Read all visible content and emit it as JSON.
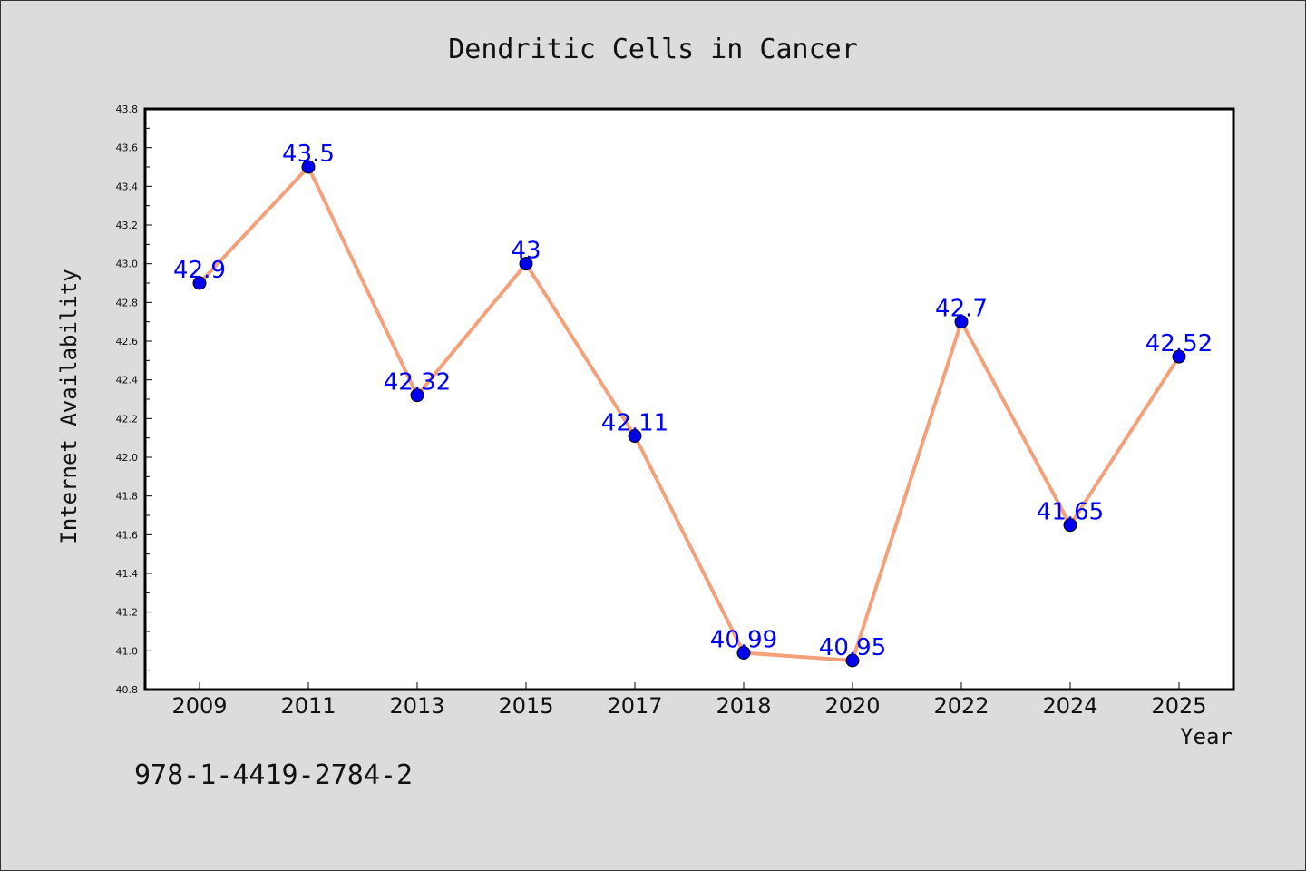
{
  "chart_data": {
    "type": "line",
    "title": "Dendritic Cells in Cancer",
    "xlabel": "Year",
    "ylabel": "Internet Availability",
    "categories": [
      "2009",
      "2011",
      "2013",
      "2015",
      "2017",
      "2018",
      "2020",
      "2022",
      "2024",
      "2025"
    ],
    "series": [
      {
        "values": [
          42.9,
          43.5,
          42.32,
          43.0,
          42.11,
          40.99,
          40.95,
          42.7,
          41.65,
          42.52
        ]
      }
    ],
    "data_labels": [
      "42.9",
      "43.5",
      "42.32",
      "43",
      "42.11",
      "40.99",
      "40.95",
      "42.7",
      "41.65",
      "42.52"
    ],
    "ylim": [
      40.8,
      43.8
    ],
    "yticks": [
      "40.8",
      "41.0",
      "41.2",
      "41.4",
      "41.6",
      "41.8",
      "42.0",
      "42.2",
      "42.4",
      "42.6",
      "42.8",
      "43.0",
      "43.2",
      "43.4",
      "43.6",
      "43.8"
    ],
    "grid": false,
    "line_color": "#f4a07a",
    "marker_color": "#0000ee",
    "label_color": "#0000ff"
  },
  "footnote": "978-1-4419-2784-2"
}
